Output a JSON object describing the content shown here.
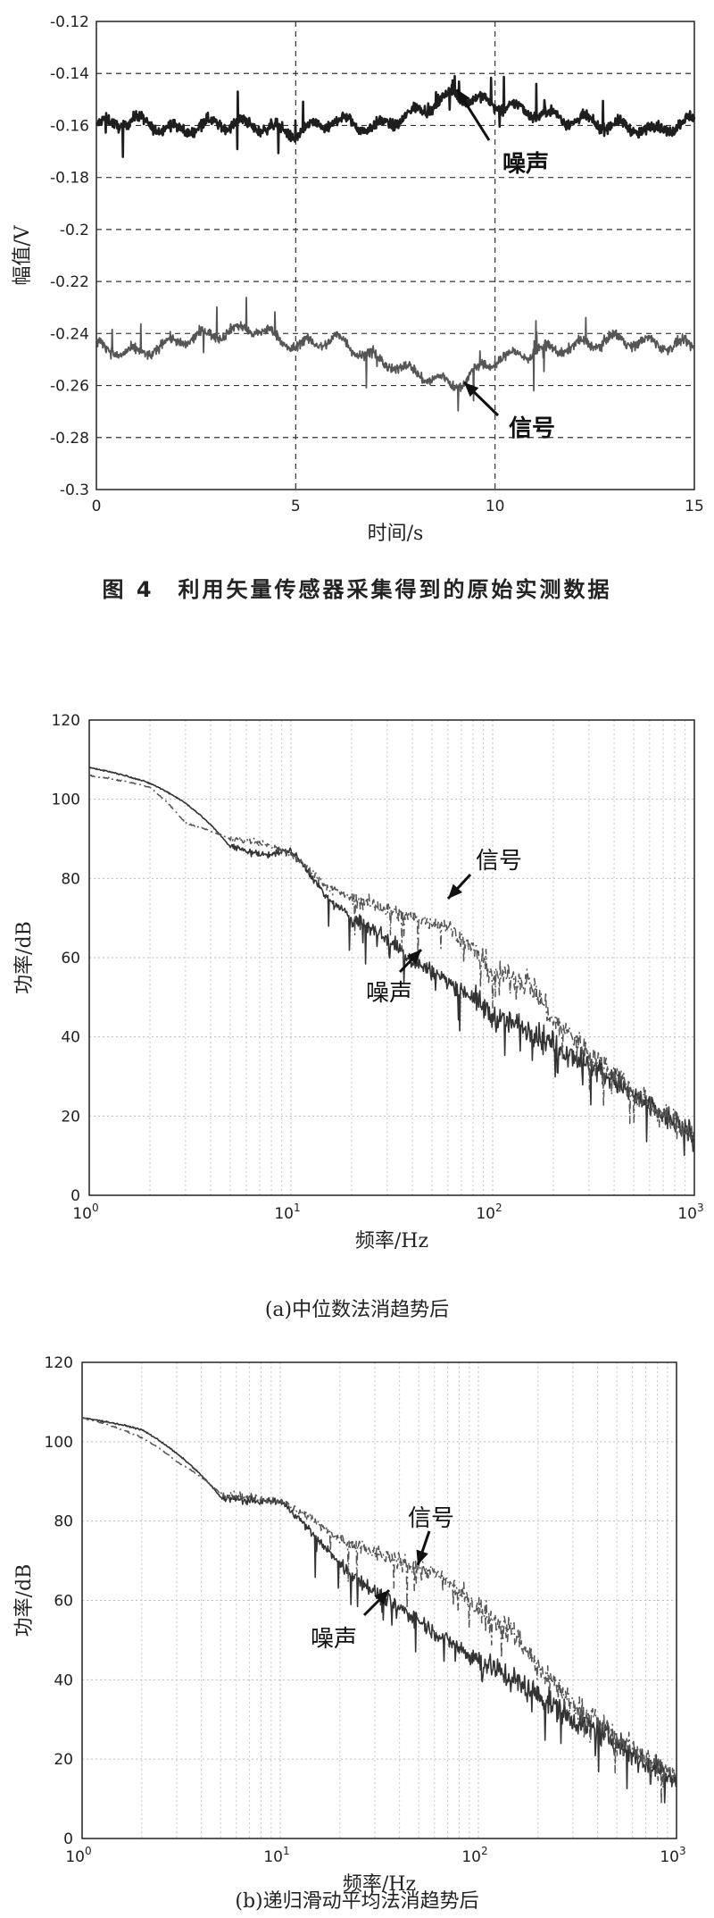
{
  "captions": {
    "fig4": "图 4　利用矢量传感器采集得到的原始实测数据",
    "a": "(a)中位数法消趋势后",
    "b": "(b)递归滑动平均法消趋势后"
  },
  "chart_data": [
    {
      "type": "line",
      "xlabel": "时间/s",
      "ylabel": "幅值/V",
      "xlim": [
        0,
        15
      ],
      "ylim": [
        -0.3,
        -0.12
      ],
      "xticks": [
        "0",
        "5",
        "10",
        "15"
      ],
      "yticks": [
        "-0.12",
        "-0.14",
        "-0.16",
        "-0.18",
        "-0.2",
        "-0.22",
        "-0.24",
        "-0.26",
        "-0.28",
        "-0.3"
      ],
      "grid": "dashed",
      "annotations": [
        "噪声",
        "信号"
      ],
      "series": [
        {
          "label": "噪声",
          "x": [
            0,
            1,
            2,
            3,
            4,
            5,
            6,
            7,
            8,
            9,
            10,
            11,
            12,
            13,
            14,
            15
          ],
          "y": [
            -0.16,
            -0.158,
            -0.162,
            -0.159,
            -0.16,
            -0.163,
            -0.158,
            -0.161,
            -0.155,
            -0.148,
            -0.152,
            -0.155,
            -0.158,
            -0.16,
            -0.162,
            -0.158
          ]
        },
        {
          "label": "信号",
          "x": [
            0,
            1,
            2,
            3,
            4,
            5,
            6,
            7,
            8,
            9,
            10,
            11,
            12,
            13,
            14,
            15
          ],
          "y": [
            -0.245,
            -0.248,
            -0.243,
            -0.24,
            -0.238,
            -0.245,
            -0.242,
            -0.25,
            -0.255,
            -0.26,
            -0.25,
            -0.247,
            -0.245,
            -0.242,
            -0.244,
            -0.245
          ]
        }
      ]
    },
    {
      "type": "line",
      "xlabel": "频率/Hz",
      "ylabel": "功率/dB",
      "xscale": "log",
      "xlim": [
        1,
        1000
      ],
      "ylim": [
        0,
        120
      ],
      "xticks": [
        "10^0",
        "10^1",
        "10^2",
        "10^3"
      ],
      "yticks": [
        "0",
        "20",
        "40",
        "60",
        "80",
        "100",
        "120"
      ],
      "grid": "dotted",
      "annotations": [
        "信号",
        "噪声"
      ],
      "series": [
        {
          "label": "噪声",
          "style": "solid",
          "x": [
            1,
            2,
            3,
            5,
            7,
            10,
            15,
            20,
            30,
            40,
            60,
            80,
            100,
            150,
            200,
            300,
            500,
            700,
            1000
          ],
          "y": [
            108,
            104,
            99,
            88,
            86,
            87,
            75,
            70,
            65,
            59,
            54,
            50,
            45,
            42,
            38,
            33,
            25,
            20,
            15
          ]
        },
        {
          "label": "信号",
          "style": "dash-dot",
          "x": [
            1,
            2,
            3,
            5,
            7,
            10,
            15,
            20,
            30,
            40,
            60,
            80,
            100,
            150,
            200,
            300,
            500,
            700,
            1000
          ],
          "y": [
            106,
            103,
            94,
            90,
            89,
            86,
            78,
            75,
            72,
            70,
            68,
            62,
            56,
            54,
            44,
            36,
            26,
            20,
            15
          ]
        }
      ]
    },
    {
      "type": "line",
      "xlabel": "频率/Hz",
      "ylabel": "功率/dB",
      "xscale": "log",
      "xlim": [
        1,
        1000
      ],
      "ylim": [
        0,
        120
      ],
      "xticks": [
        "10^0",
        "10^1",
        "10^2",
        "10^3"
      ],
      "yticks": [
        "0",
        "20",
        "40",
        "60",
        "80",
        "100",
        "120"
      ],
      "grid": "dotted",
      "annotations": [
        "信号",
        "噪声"
      ],
      "series": [
        {
          "label": "噪声",
          "style": "solid",
          "x": [
            1,
            2,
            3,
            5,
            7,
            10,
            15,
            20,
            30,
            40,
            60,
            80,
            100,
            150,
            200,
            300,
            500,
            700,
            1000
          ],
          "y": [
            106,
            103,
            97,
            86,
            85,
            85,
            76,
            69,
            62,
            58,
            52,
            48,
            45,
            40,
            36,
            30,
            24,
            19,
            15
          ]
        },
        {
          "label": "信号",
          "style": "dash-dot",
          "x": [
            1,
            2,
            3,
            5,
            7,
            10,
            15,
            20,
            30,
            40,
            60,
            80,
            100,
            150,
            200,
            300,
            500,
            700,
            1000
          ],
          "y": [
            106,
            101,
            95,
            87,
            86,
            85,
            80,
            75,
            72,
            70,
            67,
            62,
            58,
            52,
            43,
            34,
            25,
            20,
            15
          ]
        }
      ]
    }
  ]
}
